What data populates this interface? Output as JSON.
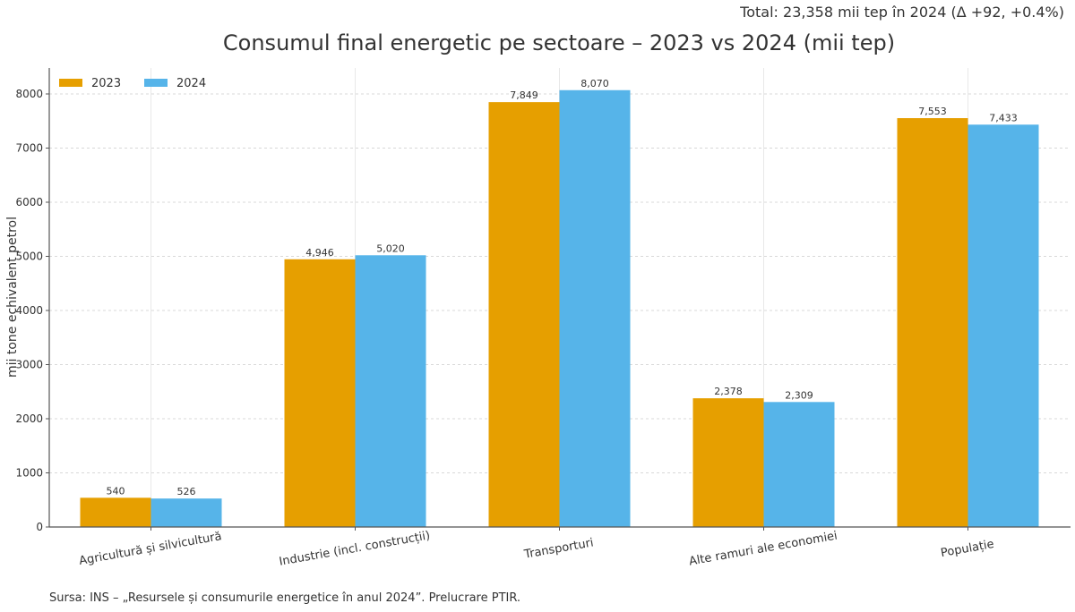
{
  "header": {
    "total_note": "Total: 23,358 mii tep în 2024  (Δ +92, +0.4%)"
  },
  "footer": {
    "source": "Sursa: INS – „Resursele și consumurile energetice în anul 2024”. Prelucrare PTIR."
  },
  "chart_data": {
    "type": "bar",
    "title": "Consumul final energetic pe sectoare – 2023 vs 2024 (mii tep)",
    "xlabel": "",
    "ylabel": "mii tone echivalent petrol",
    "ylim": [
      0,
      8450
    ],
    "yticks": [
      0,
      1000,
      2000,
      3000,
      4000,
      5000,
      6000,
      7000,
      8000
    ],
    "grid": true,
    "legend_position": "top-left",
    "categories": [
      "Agricultură și silvicultură",
      "Industrie (incl. construcții)",
      "Transporturi",
      "Alte ramuri ale economiei",
      "Populație"
    ],
    "series": [
      {
        "name": "2023",
        "color": "#E69F00",
        "values": [
          540,
          4946,
          7849,
          2378,
          7553
        ],
        "labels": [
          "540",
          "4,946",
          "7,849",
          "2,378",
          "7,553"
        ]
      },
      {
        "name": "2024",
        "color": "#56B4E9",
        "values": [
          526,
          5020,
          8070,
          2309,
          7433
        ],
        "labels": [
          "526",
          "5,020",
          "8,070",
          "2,309",
          "7,433"
        ]
      }
    ]
  }
}
